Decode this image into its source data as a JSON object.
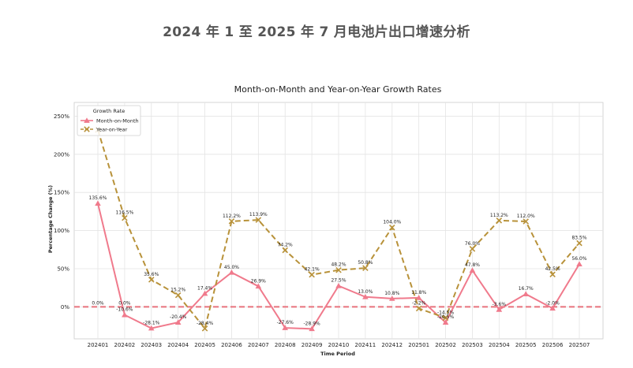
{
  "page_title": "2024 年 1 至 2025 年 7 月电池片出口增速分析",
  "chart_data": {
    "type": "line",
    "title": "Month-on-Month and Year-on-Year Growth Rates",
    "xlabel": "Time Period",
    "ylabel": "Percentage Change (%)",
    "categories": [
      "202401",
      "202402",
      "202403",
      "202404",
      "202405",
      "202406",
      "202407",
      "202408",
      "202409",
      "202410",
      "202411",
      "202412",
      "202501",
      "202502",
      "202503",
      "202504",
      "202505",
      "202506",
      "202507"
    ],
    "ylim": [
      -42,
      268
    ],
    "yticks": [
      0,
      50,
      100,
      150,
      200,
      250
    ],
    "ytick_labels": [
      "0%",
      "50%",
      "100%",
      "150%",
      "200%",
      "250%"
    ],
    "grid": true,
    "legend": {
      "title": "Growth Rate",
      "position": "top-left"
    },
    "reference_line": {
      "y": 0,
      "color": "#e8727c",
      "style": "dashed"
    },
    "series": [
      {
        "name": "Month-on-Month",
        "color": "#f07a8c",
        "marker": "triangle",
        "line_style": "solid",
        "values": [
          135.6,
          -10.6,
          -28.1,
          -20.4,
          17.4,
          45.0,
          26.9,
          -27.6,
          -28.9,
          27.5,
          13.0,
          10.8,
          11.8,
          -20.5,
          47.8,
          -3.6,
          16.7,
          -2.0,
          56.0
        ],
        "labels": [
          "135.6%",
          "-10.6%",
          "-28.1%",
          "-20.4%",
          "17.4%",
          "45.0%",
          "26.9%",
          "-27.6%",
          "-28.9%",
          "27.5%",
          "13.0%",
          "10.8%",
          "11.8%",
          "-20.5%",
          "47.8%",
          "-3.6%",
          "16.7%",
          "-2.0%",
          "56.0%"
        ]
      },
      {
        "name": "Year-on-Year",
        "color": "#b8923a",
        "marker": "x",
        "line_style": "dashed",
        "values": [
          232.0,
          116.5,
          35.6,
          15.2,
          -28.4,
          112.2,
          113.9,
          74.2,
          42.1,
          48.2,
          50.8,
          104.0,
          -2.2,
          -14.5,
          76.0,
          113.2,
          112.0,
          42.5,
          83.5
        ],
        "labels": [
          "",
          "116.5%",
          "35.6%",
          "15.2%",
          "-28.4%",
          "112.2%",
          "113.9%",
          "74.2%",
          "42.1%",
          "48.2%",
          "50.8%",
          "104.0%",
          "-2.2%",
          "-14.5%",
          "76.0%",
          "113.2%",
          "112.0%",
          "42.5%",
          "83.5%"
        ]
      }
    ],
    "extra_labels": [
      {
        "category": "202401",
        "y": 0,
        "text": "0.0%"
      },
      {
        "category": "202402",
        "y": 0,
        "text": "0.0%"
      }
    ]
  }
}
